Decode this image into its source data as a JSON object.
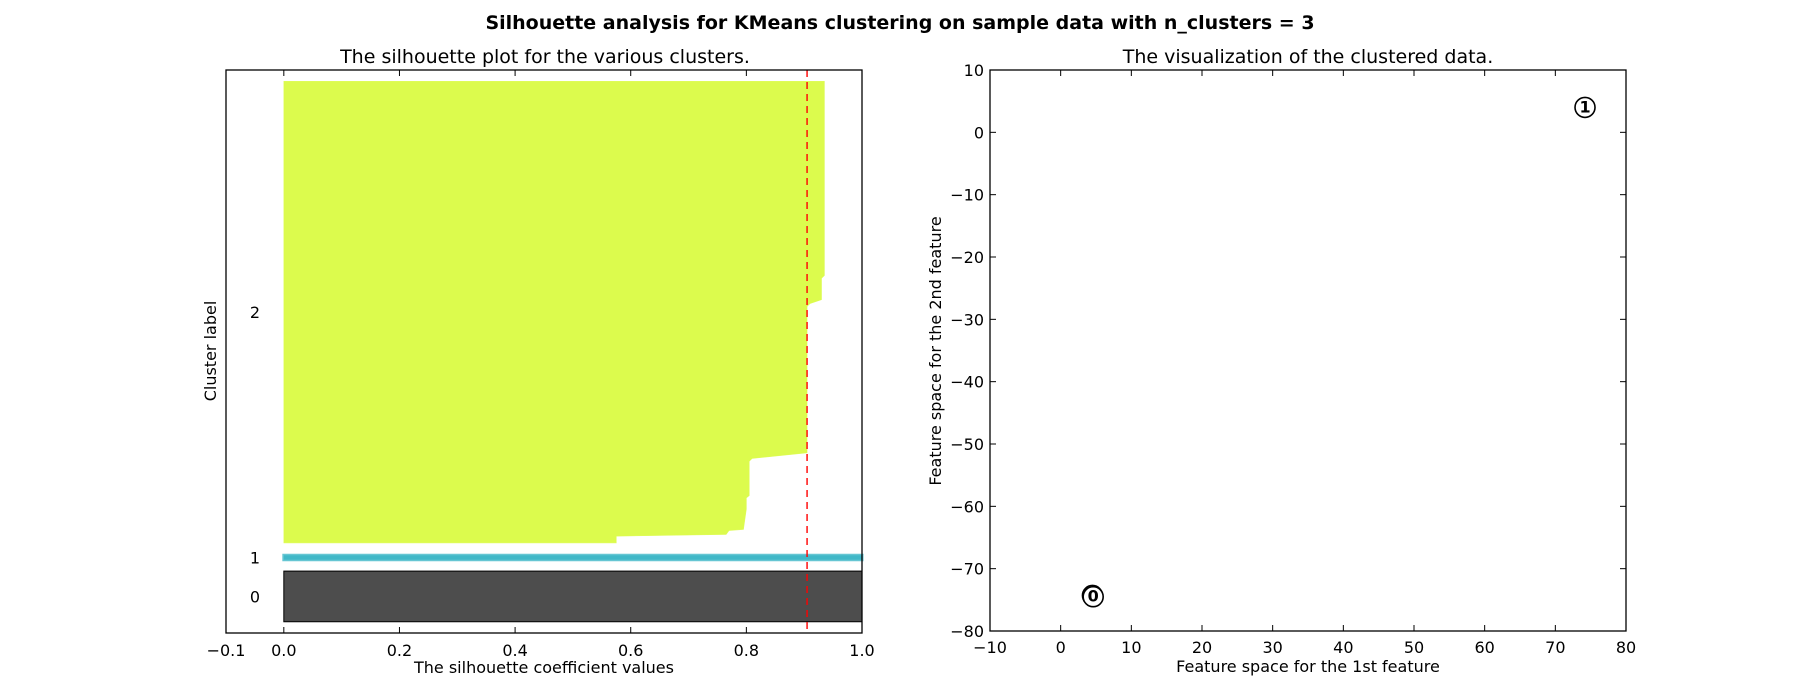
{
  "figure": {
    "title": "Silhouette analysis for KMeans clustering on sample data with n_clusters = 3"
  },
  "chart_data": [
    {
      "type": "area",
      "title": "The silhouette plot for the various clusters.",
      "xlabel": "The silhouette coefficient values",
      "ylabel": "Cluster label",
      "xlim": [
        -0.1,
        1.0
      ],
      "ylim": [
        0,
        100
      ],
      "xticks": [
        -0.1,
        0.0,
        0.2,
        0.4,
        0.6,
        0.8,
        1.0
      ],
      "xtick_labels": [
        "−0.1",
        "0.0",
        "0.2",
        "0.4",
        "0.6",
        "0.8",
        "1.0"
      ],
      "grid": false,
      "average_silhouette": 0.905,
      "average_line_color": "#ff0000",
      "clusters": [
        {
          "label": "0",
          "color": "#4d4d4d",
          "y_range": [
            2,
            11
          ],
          "profile": [
            [
              2,
              1.0
            ],
            [
              11,
              1.0
            ]
          ]
        },
        {
          "label": "1",
          "color": "#40b8c8",
          "y_range": [
            13,
            13.8
          ],
          "profile": [
            [
              13,
              1.0
            ],
            [
              13.8,
              1.0
            ]
          ]
        },
        {
          "label": "2",
          "color": "#dcfb4d",
          "y_range": [
            16,
            98
          ],
          "profile": [
            [
              16,
              0.575
            ],
            [
              17.2,
              0.575
            ],
            [
              17.5,
              0.765
            ],
            [
              18.2,
              0.77
            ],
            [
              18.4,
              0.795
            ],
            [
              22,
              0.8
            ],
            [
              24,
              0.8
            ],
            [
              24.4,
              0.805
            ],
            [
              30.5,
              0.805
            ],
            [
              31,
              0.81
            ],
            [
              32,
              0.905
            ],
            [
              58,
              0.905
            ],
            [
              58.5,
              0.91
            ],
            [
              59.2,
              0.93
            ],
            [
              63,
              0.93
            ],
            [
              63.5,
              0.935
            ],
            [
              98,
              0.935
            ]
          ]
        }
      ]
    },
    {
      "type": "scatter",
      "title": "The visualization of the clustered data.",
      "xlabel": "Feature space for the 1st feature",
      "ylabel": "Feature space for the 2nd feature",
      "xlim": [
        -10,
        80
      ],
      "ylim": [
        -80,
        10
      ],
      "xticks": [
        -10,
        0,
        10,
        20,
        30,
        40,
        50,
        60,
        70,
        80
      ],
      "xtick_labels": [
        "−10",
        "0",
        "10",
        "20",
        "30",
        "40",
        "50",
        "60",
        "70",
        "80"
      ],
      "yticks": [
        10,
        0,
        -10,
        -20,
        -30,
        -40,
        -50,
        -60,
        -70,
        -80
      ],
      "ytick_labels": [
        "10",
        "0",
        "−10",
        "−20",
        "−30",
        "−40",
        "−50",
        "−60",
        "−70",
        "−80"
      ],
      "grid": false,
      "centers": [
        {
          "label": "1",
          "x": 74.2,
          "y": 4.0
        },
        {
          "label": "2",
          "x": 4.5,
          "y": -74.3
        },
        {
          "label": "0",
          "x": 4.6,
          "y": -74.5
        }
      ],
      "center_fill": "#ffffff",
      "center_edge": "#000000"
    }
  ]
}
